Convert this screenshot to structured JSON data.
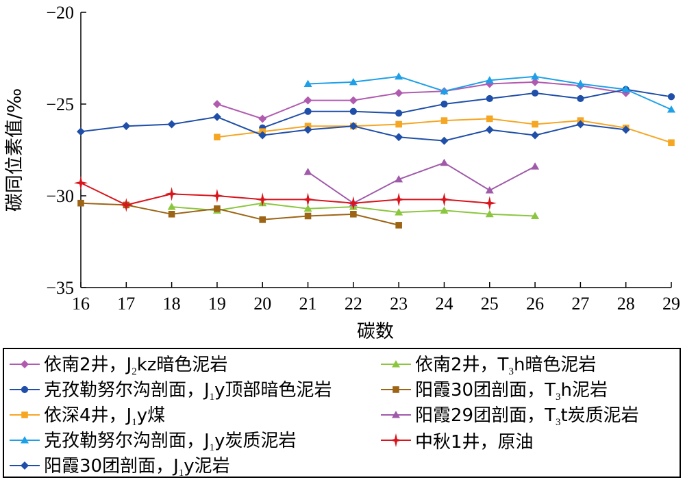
{
  "chart_data": {
    "type": "line",
    "xlabel": "碳数",
    "ylabel": "碳同位素值/‰",
    "xlim": [
      16,
      29
    ],
    "ylim": [
      -35,
      -20
    ],
    "xticks": [
      "16",
      "17",
      "18",
      "19",
      "20",
      "21",
      "22",
      "23",
      "24",
      "25",
      "26",
      "27",
      "28",
      "29"
    ],
    "yticks": [
      "−20",
      "−25",
      "−30",
      "−35"
    ],
    "series": [
      {
        "name_parts": [
          "依南2井，J",
          "2",
          "kz暗色泥岩"
        ],
        "color": "#b05bb0",
        "marker": "diamond",
        "x": [
          19,
          20,
          21,
          22,
          23,
          24,
          25,
          26,
          27,
          28
        ],
        "y": [
          -25.0,
          -25.8,
          -24.8,
          -24.8,
          -24.4,
          -24.3,
          -23.9,
          -23.8,
          -24.0,
          -24.4
        ]
      },
      {
        "name_parts": [
          "克孜勒努尔沟剖面，J",
          "1",
          "y顶部暗色泥岩"
        ],
        "color": "#1f4fa8",
        "marker": "circle",
        "x": [
          20,
          21,
          22,
          23,
          24,
          25,
          26,
          27,
          28,
          29
        ],
        "y": [
          -26.3,
          -25.4,
          -25.4,
          -25.5,
          -25.0,
          -24.7,
          -24.4,
          -24.7,
          -24.2,
          -24.6
        ]
      },
      {
        "name_parts": [
          "依深4井，J",
          "1",
          "y煤"
        ],
        "color": "#f5a623",
        "marker": "square",
        "x": [
          19,
          20,
          21,
          22,
          23,
          24,
          25,
          26,
          27,
          28,
          29
        ],
        "y": [
          -26.8,
          -26.5,
          -26.2,
          -26.2,
          -26.1,
          -25.9,
          -25.8,
          -26.1,
          -25.9,
          -26.3,
          -27.1
        ]
      },
      {
        "name_parts": [
          "克孜勒努尔沟剖面，J",
          "1",
          "y炭质泥岩"
        ],
        "color": "#1ea0e8",
        "marker": "triangle",
        "x": [
          21,
          22,
          23,
          24,
          25,
          26,
          27,
          28,
          29
        ],
        "y": [
          -23.9,
          -23.8,
          -23.5,
          -24.3,
          -23.7,
          -23.5,
          -23.9,
          -24.2,
          -25.3
        ]
      },
      {
        "name_parts": [
          "阳霞30团剖面，J",
          "1",
          "y泥岩"
        ],
        "color": "#1f4fa8",
        "marker": "diamond",
        "x": [
          16,
          17,
          18,
          19,
          20,
          21,
          22,
          23,
          24,
          25,
          26,
          27,
          28
        ],
        "y": [
          -26.5,
          -26.2,
          -26.1,
          -25.7,
          -26.7,
          -26.4,
          -26.2,
          -26.8,
          -27.0,
          -26.4,
          -26.7,
          -26.1,
          -26.4
        ]
      },
      {
        "name_parts": [
          "依南2井，T",
          "3",
          "h暗色泥岩"
        ],
        "color": "#8cc63f",
        "marker": "triangle",
        "x": [
          18,
          19,
          20,
          21,
          22,
          23,
          24,
          25,
          26
        ],
        "y": [
          -30.6,
          -30.8,
          -30.4,
          -30.7,
          -30.6,
          -30.9,
          -30.8,
          -31.0,
          -31.1
        ]
      },
      {
        "name_parts": [
          "阳霞30团剖面，T",
          "3",
          "h泥岩"
        ],
        "color": "#9c6414",
        "marker": "square",
        "x": [
          16,
          17,
          18,
          19,
          20,
          21,
          22,
          23
        ],
        "y": [
          -30.4,
          -30.5,
          -31.0,
          -30.7,
          -31.3,
          -31.1,
          -31.0,
          -31.6
        ]
      },
      {
        "name_parts": [
          "阳霞29团剖面，T",
          "3",
          "t炭质泥岩"
        ],
        "color": "#a05aaa",
        "marker": "triangle",
        "x": [
          21,
          22,
          23,
          24,
          25,
          26
        ],
        "y": [
          -28.7,
          -30.4,
          -29.1,
          -28.2,
          -29.7,
          -28.4
        ]
      },
      {
        "name_parts": [
          "中秋1井，原油",
          "",
          ""
        ],
        "color": "#d8141c",
        "marker": "star",
        "x": [
          16,
          17,
          18,
          19,
          20,
          21,
          22,
          23,
          24,
          25
        ],
        "y": [
          -29.3,
          -30.5,
          -29.9,
          -30.0,
          -30.2,
          -30.2,
          -30.4,
          -30.2,
          -30.2,
          -30.4
        ]
      }
    ],
    "legend_order": [
      0,
      5,
      1,
      6,
      2,
      7,
      3,
      8,
      4
    ],
    "legend_placement": "bottom",
    "grid": false
  }
}
